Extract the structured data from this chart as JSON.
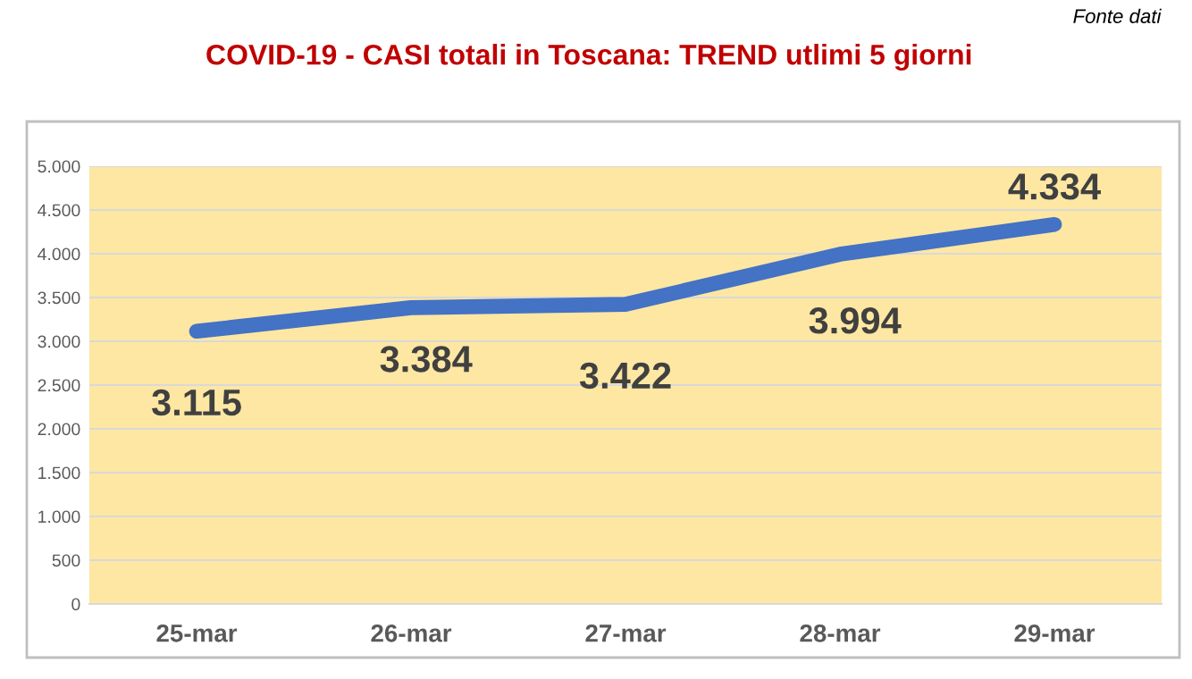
{
  "chart_data": {
    "type": "line",
    "title": "COVID-19 - CASI totali in Toscana: TREND utlimi 5 giorni",
    "categories": [
      "25-mar",
      "26-mar",
      "27-mar",
      "28-mar",
      "29-mar"
    ],
    "series": [
      {
        "color": "#4472c4",
        "values": [
          3115,
          3384,
          3422,
          3994,
          4334
        ],
        "value_labels": [
          "3.115",
          "3.384",
          "3.422",
          "3.994",
          "4.334"
        ]
      }
    ],
    "ylim": [
      0,
      5000
    ],
    "yticks": [
      {
        "value": 0,
        "label": "0"
      },
      {
        "value": 500,
        "label": "500"
      },
      {
        "value": 1000,
        "label": "1.000"
      },
      {
        "value": 1500,
        "label": "1.500"
      },
      {
        "value": 2000,
        "label": "2.000"
      },
      {
        "value": 2500,
        "label": "2.500"
      },
      {
        "value": 3000,
        "label": "3.000"
      },
      {
        "value": 3500,
        "label": "3.500"
      },
      {
        "value": 4000,
        "label": "4.000"
      },
      {
        "value": 4500,
        "label": "4.500"
      },
      {
        "value": 5000,
        "label": "5.000"
      }
    ],
    "grid": "y",
    "marker": "none",
    "line_style": "solid",
    "legend": false,
    "annotations": [
      "Fonte dati"
    ]
  }
}
